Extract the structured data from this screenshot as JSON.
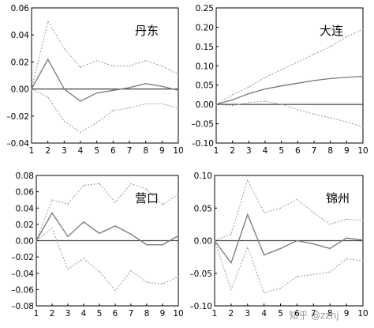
{
  "watermark": "知乎 @zzhj",
  "chart_data": [
    {
      "type": "line",
      "title": "丹东",
      "x": [
        1,
        2,
        3,
        4,
        5,
        6,
        7,
        8,
        9,
        10
      ],
      "ylim": [
        -0.04,
        0.06
      ],
      "yticks": [
        "0.06",
        "0.04",
        "0.02",
        "0.00",
        "–0.02",
        "–0.04"
      ],
      "xticks": [
        "1",
        "2",
        "3",
        "4",
        "5",
        "6",
        "7",
        "8",
        "9",
        "10"
      ],
      "zero_line": true,
      "series": [
        {
          "role": "upper",
          "values": [
            0.0,
            0.05,
            0.03,
            0.016,
            0.021,
            0.017,
            0.017,
            0.021,
            0.017,
            0.011
          ]
        },
        {
          "role": "response",
          "values": [
            0.0,
            0.022,
            0.0,
            -0.009,
            -0.003,
            -0.001,
            0.001,
            0.004,
            0.002,
            -0.001
          ]
        },
        {
          "role": "lower",
          "values": [
            0.0,
            -0.006,
            -0.024,
            -0.032,
            -0.025,
            -0.016,
            -0.014,
            -0.011,
            -0.011,
            -0.014
          ]
        }
      ]
    },
    {
      "type": "line",
      "title": "大连",
      "x": [
        1,
        2,
        3,
        4,
        5,
        6,
        7,
        8,
        9,
        10
      ],
      "ylim": [
        -0.1,
        0.25
      ],
      "yticks": [
        "0.25",
        "0.20",
        "0.15",
        "0.10",
        "0.05",
        "0.00",
        "–0.05",
        "–0.10"
      ],
      "xticks": [
        "1",
        "2",
        "3",
        "4",
        "5",
        "6",
        "7",
        "8",
        "9",
        "10"
      ],
      "zero_line": true,
      "series": [
        {
          "role": "upper",
          "values": [
            0.0,
            0.025,
            0.045,
            0.07,
            0.09,
            0.11,
            0.13,
            0.15,
            0.175,
            0.195
          ]
        },
        {
          "role": "response",
          "values": [
            0.0,
            0.012,
            0.028,
            0.04,
            0.048,
            0.055,
            0.062,
            0.067,
            0.07,
            0.073
          ]
        },
        {
          "role": "lower",
          "values": [
            0.0,
            -0.003,
            0.005,
            0.008,
            0.0,
            -0.013,
            -0.025,
            -0.035,
            -0.045,
            -0.058
          ]
        }
      ]
    },
    {
      "type": "line",
      "title": "营口",
      "x": [
        1,
        2,
        3,
        4,
        5,
        6,
        7,
        8,
        9,
        10
      ],
      "ylim": [
        -0.08,
        0.08
      ],
      "yticks": [
        "0.08",
        "0.06",
        "0.04",
        "0.02",
        "0.00",
        "–0.02",
        "–0.04",
        "–0.06",
        "–0.08"
      ],
      "xticks": [
        "1",
        "2",
        "3",
        "4",
        "5",
        "6",
        "7",
        "8",
        "9",
        "10"
      ],
      "zero_line": true,
      "series": [
        {
          "role": "upper",
          "values": [
            0.0,
            0.05,
            0.045,
            0.068,
            0.07,
            0.047,
            0.07,
            0.063,
            0.044,
            0.057
          ]
        },
        {
          "role": "response",
          "values": [
            0.0,
            0.034,
            0.005,
            0.023,
            0.009,
            0.018,
            0.008,
            -0.005,
            -0.005,
            0.006
          ]
        },
        {
          "role": "lower",
          "values": [
            0.0,
            0.015,
            -0.035,
            -0.022,
            -0.038,
            -0.061,
            -0.037,
            -0.051,
            -0.053,
            -0.044
          ]
        }
      ]
    },
    {
      "type": "line",
      "title": "锦州",
      "x": [
        1,
        2,
        3,
        4,
        5,
        6,
        7,
        8,
        9,
        10
      ],
      "ylim": [
        -0.1,
        0.1
      ],
      "yticks": [
        "0.10",
        "0.05",
        "0.00",
        "–0.05",
        "–0.10"
      ],
      "xticks": [
        "1",
        "2",
        "3",
        "4",
        "5",
        "6",
        "7",
        "8",
        "9",
        "10"
      ],
      "zero_line": true,
      "series": [
        {
          "role": "upper",
          "values": [
            0.0,
            0.01,
            0.093,
            0.043,
            0.05,
            0.063,
            0.043,
            0.025,
            0.033,
            0.031
          ]
        },
        {
          "role": "response",
          "values": [
            0.0,
            -0.034,
            0.04,
            -0.022,
            -0.012,
            0.0,
            -0.005,
            -0.012,
            0.004,
            0.001
          ]
        },
        {
          "role": "lower",
          "values": [
            0.0,
            -0.075,
            -0.01,
            -0.08,
            -0.073,
            -0.055,
            -0.052,
            -0.048,
            -0.028,
            -0.031
          ]
        }
      ]
    }
  ]
}
